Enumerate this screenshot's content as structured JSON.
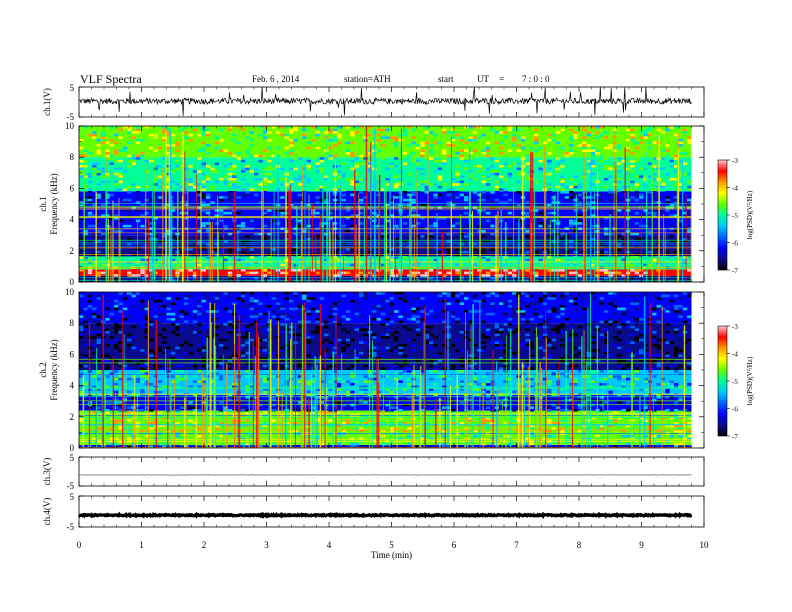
{
  "header": {
    "title": "VLF Spectra",
    "date": "Feb. 6 , 2014",
    "station": "station=ATH",
    "start_label": "start",
    "ut_label": "UT",
    "equals": "=",
    "start_time": "7 : 0 : 0"
  },
  "colors": {
    "trace": "#000000",
    "frame": "#000000",
    "colormap": [
      "#000000",
      "#0a0a8c",
      "#0000ff",
      "#0064ff",
      "#00c8ff",
      "#00ff96",
      "#64ff00",
      "#ffff00",
      "#ff9600",
      "#ff0000",
      "#ffc8c8"
    ]
  },
  "chart_data": [
    {
      "type": "line",
      "title": "",
      "ylabel": "ch.1(V)",
      "ylim": [
        -5,
        5
      ],
      "yticks": [
        "5",
        "-5"
      ],
      "description_values": {
        "baseline": 0.3,
        "noise_amplitude": 1.0,
        "spike_max": 5
      }
    },
    {
      "type": "heatmap",
      "channel_label": "ch.1",
      "ylabel": "Frequency (kHz)",
      "ylim": [
        0,
        10
      ],
      "yticks": [
        "0",
        "2",
        "4",
        "6",
        "8",
        "10"
      ],
      "colorbar": {
        "label": "log(PSD)(V²/Hz)",
        "range": [
          -7,
          -3
        ],
        "ticks": [
          "-3",
          "-4",
          "-5",
          "-6",
          "-7"
        ]
      },
      "bands": [
        {
          "from_khz": 0.0,
          "to_khz": 0.4,
          "level": -6.5
        },
        {
          "from_khz": 0.4,
          "to_khz": 0.8,
          "level": -3.3
        },
        {
          "from_khz": 0.8,
          "to_khz": 1.6,
          "level": -5.0
        },
        {
          "from_khz": 1.6,
          "to_khz": 3.0,
          "level": -6.6
        },
        {
          "from_khz": 3.0,
          "to_khz": 5.8,
          "level": -6.1
        },
        {
          "from_khz": 5.8,
          "to_khz": 8.0,
          "level": -4.9
        },
        {
          "from_khz": 8.0,
          "to_khz": 10.0,
          "level": -4.5
        }
      ]
    },
    {
      "type": "heatmap",
      "channel_label": "ch.2",
      "ylabel": "Frequency (kHz)",
      "ylim": [
        0,
        10
      ],
      "yticks": [
        "0",
        "2",
        "4",
        "6",
        "8",
        "10"
      ],
      "colorbar": {
        "label": "log(PSD)(V²/Hz)",
        "range": [
          -7,
          -3
        ],
        "ticks": [
          "-3",
          "-4",
          "-5",
          "-6",
          "-7"
        ]
      },
      "bands": [
        {
          "from_khz": 0.0,
          "to_khz": 0.2,
          "level": -6.2
        },
        {
          "from_khz": 0.2,
          "to_khz": 1.0,
          "level": -4.8
        },
        {
          "from_khz": 1.0,
          "to_khz": 2.4,
          "level": -4.4
        },
        {
          "from_khz": 2.4,
          "to_khz": 3.4,
          "level": -6.2
        },
        {
          "from_khz": 3.4,
          "to_khz": 5.0,
          "level": -5.3
        },
        {
          "from_khz": 5.0,
          "to_khz": 8.0,
          "level": -6.6
        },
        {
          "from_khz": 8.0,
          "to_khz": 10.0,
          "level": -6.3
        }
      ]
    },
    {
      "type": "line",
      "ylabel": "ch.3(V)",
      "ylim": [
        -5,
        5
      ],
      "yticks": [
        "5",
        "-5"
      ],
      "description_values": {
        "baseline": -1.2,
        "noise_amplitude": 0.05
      }
    },
    {
      "type": "line",
      "ylabel": "ch.4(V)",
      "ylim": [
        -5,
        5
      ],
      "yticks": [
        "5",
        "-5"
      ],
      "description_values": {
        "baseline": -1.2,
        "noise_amplitude": 0.2
      }
    }
  ],
  "x_axis": {
    "label": "Time (min)",
    "xlim": [
      0,
      10
    ],
    "ticks": [
      "0",
      "1",
      "2",
      "3",
      "4",
      "5",
      "6",
      "7",
      "8",
      "9",
      "10"
    ],
    "data_end_min": 9.8
  }
}
